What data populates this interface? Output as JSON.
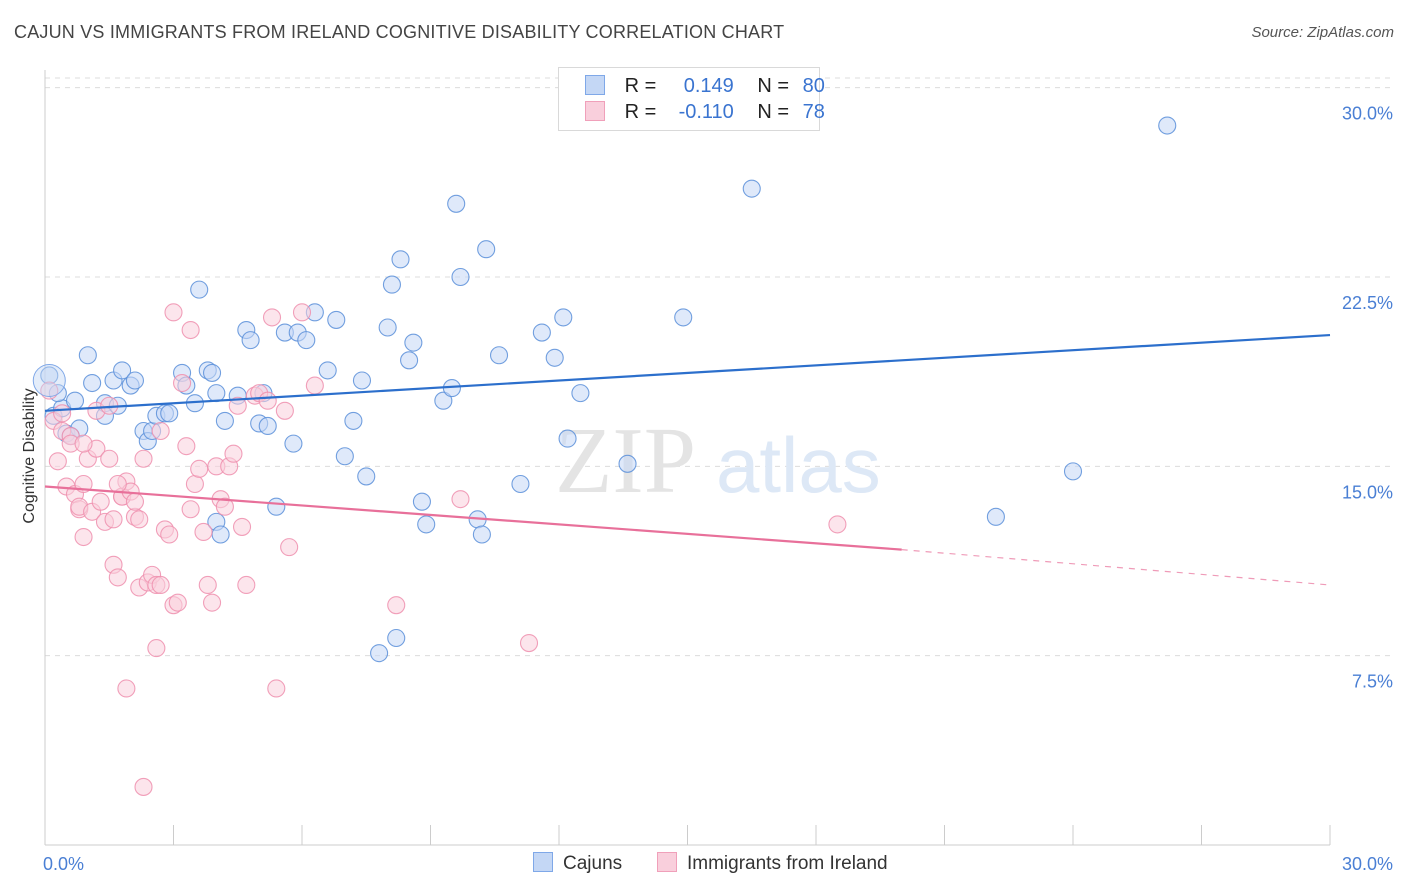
{
  "title": "CAJUN VS IMMIGRANTS FROM IRELAND COGNITIVE DISABILITY CORRELATION CHART",
  "source": "Source: ZipAtlas.com",
  "watermark": {
    "zip": "ZIP",
    "atlas": "atlas"
  },
  "legend_top": {
    "rows": [
      {
        "r_label": "R =",
        "r_value": "0.149",
        "n_label": "N =",
        "n_value": "80",
        "color": "#7fa8e8",
        "fill": "#c4d7f5"
      },
      {
        "r_label": "R =",
        "r_value": "-0.110",
        "n_label": "N =",
        "n_value": "78",
        "color": "#f0a0ba",
        "fill": "#f9cfdc"
      }
    ]
  },
  "legend_bottom": [
    {
      "label": "Cajuns",
      "color": "#7fa8e8",
      "fill": "#c4d7f5"
    },
    {
      "label": "Immigrants from Ireland",
      "color": "#f0a0ba",
      "fill": "#f9cfdc"
    }
  ],
  "chart_data": {
    "type": "scatter",
    "title": "CAJUN VS IMMIGRANTS FROM IRELAND COGNITIVE DISABILITY CORRELATION CHART",
    "xlabel": "",
    "ylabel": "Cognitive Disability",
    "xlim": [
      0,
      30
    ],
    "ylim": [
      0,
      30.7
    ],
    "x_tick_labels": [
      "0.0%",
      "30.0%"
    ],
    "y_ticks": [
      7.5,
      15.0,
      22.5,
      30.0
    ],
    "y_tick_labels": [
      "7.5%",
      "15.0%",
      "22.5%",
      "30.0%"
    ],
    "grid": true,
    "legend_placement": "top-center",
    "series": [
      {
        "name": "Cajuns",
        "color": "#5b8fd9",
        "fill": "#c4d7f5",
        "trend": {
          "x": [
            0,
            30
          ],
          "y": [
            17.2,
            20.2
          ],
          "color": "#2c6fcc"
        },
        "points": [
          [
            0.1,
            18.6
          ],
          [
            0.2,
            17.0
          ],
          [
            0.4,
            17.3
          ],
          [
            0.5,
            16.3
          ],
          [
            0.7,
            17.6
          ],
          [
            0.8,
            16.5
          ],
          [
            1.0,
            19.4
          ],
          [
            1.1,
            18.3
          ],
          [
            1.4,
            17.5
          ],
          [
            1.4,
            17.0
          ],
          [
            1.6,
            18.4
          ],
          [
            1.7,
            17.4
          ],
          [
            1.8,
            18.8
          ],
          [
            2.0,
            18.2
          ],
          [
            2.1,
            18.4
          ],
          [
            2.3,
            16.4
          ],
          [
            2.4,
            16.0
          ],
          [
            2.5,
            16.4
          ],
          [
            2.6,
            17.0
          ],
          [
            2.8,
            17.1
          ],
          [
            2.9,
            17.1
          ],
          [
            3.2,
            18.7
          ],
          [
            3.3,
            18.2
          ],
          [
            3.5,
            17.5
          ],
          [
            3.6,
            22.0
          ],
          [
            3.8,
            18.8
          ],
          [
            3.9,
            18.7
          ],
          [
            4.0,
            17.9
          ],
          [
            4.2,
            16.8
          ],
          [
            4.0,
            12.8
          ],
          [
            4.1,
            12.3
          ],
          [
            4.5,
            17.8
          ],
          [
            4.7,
            20.4
          ],
          [
            4.8,
            20.0
          ],
          [
            5.0,
            16.7
          ],
          [
            5.1,
            17.9
          ],
          [
            5.2,
            16.6
          ],
          [
            5.4,
            13.4
          ],
          [
            5.6,
            20.3
          ],
          [
            5.8,
            15.9
          ],
          [
            5.9,
            20.3
          ],
          [
            6.1,
            20.0
          ],
          [
            6.3,
            21.1
          ],
          [
            6.6,
            18.8
          ],
          [
            6.8,
            20.8
          ],
          [
            7.0,
            15.4
          ],
          [
            7.2,
            16.8
          ],
          [
            7.4,
            18.4
          ],
          [
            7.5,
            14.6
          ],
          [
            7.8,
            7.6
          ],
          [
            8.0,
            20.5
          ],
          [
            8.1,
            22.2
          ],
          [
            8.2,
            8.2
          ],
          [
            8.3,
            23.2
          ],
          [
            8.5,
            19.2
          ],
          [
            8.6,
            19.9
          ],
          [
            8.8,
            13.6
          ],
          [
            8.9,
            12.7
          ],
          [
            9.3,
            17.6
          ],
          [
            9.5,
            18.1
          ],
          [
            9.6,
            25.4
          ],
          [
            9.7,
            22.5
          ],
          [
            10.1,
            12.9
          ],
          [
            10.2,
            12.3
          ],
          [
            10.3,
            23.6
          ],
          [
            10.6,
            19.4
          ],
          [
            11.1,
            14.3
          ],
          [
            11.6,
            20.3
          ],
          [
            11.9,
            19.3
          ],
          [
            12.1,
            20.9
          ],
          [
            12.2,
            16.1
          ],
          [
            12.5,
            17.9
          ],
          [
            13.6,
            15.1
          ],
          [
            14.9,
            20.9
          ],
          [
            16.5,
            26.0
          ],
          [
            22.2,
            13.0
          ],
          [
            24.0,
            14.8
          ],
          [
            26.2,
            28.5
          ],
          [
            0.3,
            17.9
          ],
          [
            0.6,
            16.2
          ]
        ]
      },
      {
        "name": "Immigrants from Ireland",
        "color": "#ee8fae",
        "fill": "#f9cfdc",
        "trend": {
          "x": [
            0,
            20
          ],
          "y": [
            14.2,
            11.7
          ],
          "dash_x": [
            20,
            30
          ],
          "dash_y": [
            11.7,
            10.3
          ],
          "color": "#e8709a"
        },
        "points": [
          [
            0.1,
            18.0
          ],
          [
            0.2,
            16.8
          ],
          [
            0.3,
            15.2
          ],
          [
            0.4,
            16.4
          ],
          [
            0.5,
            14.2
          ],
          [
            0.6,
            16.2
          ],
          [
            0.6,
            15.9
          ],
          [
            0.7,
            13.9
          ],
          [
            0.8,
            13.3
          ],
          [
            0.8,
            13.4
          ],
          [
            0.9,
            12.2
          ],
          [
            0.9,
            14.3
          ],
          [
            1.0,
            15.3
          ],
          [
            1.1,
            13.2
          ],
          [
            1.2,
            17.2
          ],
          [
            1.2,
            15.7
          ],
          [
            1.3,
            13.6
          ],
          [
            1.4,
            12.8
          ],
          [
            1.5,
            15.3
          ],
          [
            1.5,
            17.4
          ],
          [
            1.6,
            12.9
          ],
          [
            1.6,
            11.1
          ],
          [
            1.7,
            10.6
          ],
          [
            1.8,
            13.8
          ],
          [
            1.8,
            13.8
          ],
          [
            1.9,
            14.4
          ],
          [
            2.0,
            14.0
          ],
          [
            2.1,
            13.0
          ],
          [
            2.2,
            12.9
          ],
          [
            2.2,
            10.2
          ],
          [
            2.3,
            15.3
          ],
          [
            2.4,
            10.4
          ],
          [
            2.5,
            10.7
          ],
          [
            2.6,
            10.3
          ],
          [
            2.7,
            10.3
          ],
          [
            2.8,
            12.5
          ],
          [
            2.9,
            12.3
          ],
          [
            3.0,
            9.5
          ],
          [
            3.1,
            9.6
          ],
          [
            3.3,
            15.8
          ],
          [
            3.4,
            13.3
          ],
          [
            3.5,
            14.3
          ],
          [
            3.6,
            14.9
          ],
          [
            3.7,
            12.4
          ],
          [
            3.8,
            10.3
          ],
          [
            3.9,
            9.6
          ],
          [
            4.0,
            15.0
          ],
          [
            4.1,
            13.7
          ],
          [
            4.2,
            13.4
          ],
          [
            4.3,
            15.0
          ],
          [
            4.4,
            15.5
          ],
          [
            4.5,
            17.4
          ],
          [
            4.6,
            12.6
          ],
          [
            4.7,
            10.3
          ],
          [
            4.9,
            17.8
          ],
          [
            5.0,
            17.9
          ],
          [
            5.2,
            17.6
          ],
          [
            5.3,
            20.9
          ],
          [
            5.4,
            6.2
          ],
          [
            5.6,
            17.2
          ],
          [
            5.7,
            11.8
          ],
          [
            6.0,
            21.1
          ],
          [
            6.3,
            18.2
          ],
          [
            8.2,
            9.5
          ],
          [
            9.7,
            13.7
          ],
          [
            11.3,
            8.0
          ],
          [
            18.5,
            12.7
          ],
          [
            1.9,
            6.2
          ],
          [
            2.3,
            2.3
          ],
          [
            2.6,
            7.8
          ],
          [
            3.0,
            21.1
          ],
          [
            3.4,
            20.4
          ],
          [
            2.1,
            13.6
          ],
          [
            1.7,
            14.3
          ],
          [
            0.4,
            17.1
          ],
          [
            0.9,
            15.9
          ],
          [
            2.7,
            16.4
          ],
          [
            3.2,
            18.3
          ]
        ]
      }
    ]
  }
}
